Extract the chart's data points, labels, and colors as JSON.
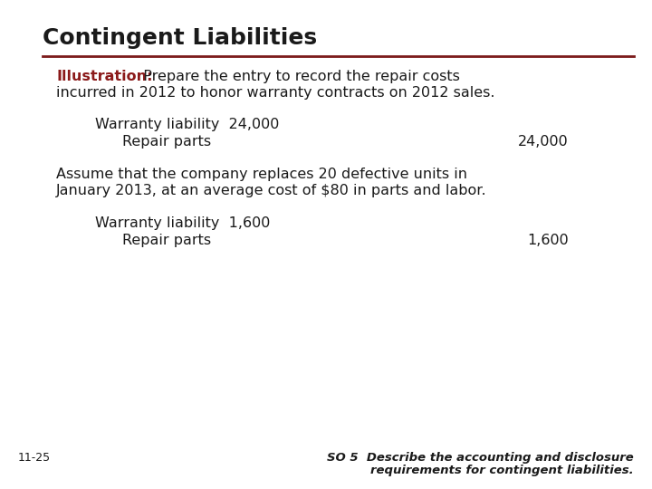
{
  "title": "Contingent Liabilities",
  "title_color": "#1a1a1a",
  "title_fontsize": 18,
  "line_color": "#7b1a1a",
  "bg_color": "#ffffff",
  "illustration_label": "Illustration:",
  "illustration_label_color": "#8b1a1a",
  "illustration_line1_prefix": "  Prepare the entry to record the repair costs",
  "illustration_line2": "incurred in 2012 to honor warranty contracts on 2012 sales.",
  "illustration_fontsize": 11.5,
  "entry1_debit_label": "Warranty liability  24,000",
  "entry1_credit_label": "Repair parts",
  "entry1_credit_amount": "24,000",
  "entry2_intro_line1": "Assume that the company replaces 20 defective units in",
  "entry2_intro_line2": "January 2013, at an average cost of $80 in parts and labor.",
  "entry2_debit_label": "Warranty liability  1,600",
  "entry2_credit_label": "Repair parts",
  "entry2_credit_amount": "1,600",
  "entry_fontsize": 11.5,
  "page_num": "11-25",
  "footer_line1": "SO 5  Describe the accounting and disclosure",
  "footer_line2": "requirements for contingent liabilities.",
  "footer_fontsize": 9.5
}
